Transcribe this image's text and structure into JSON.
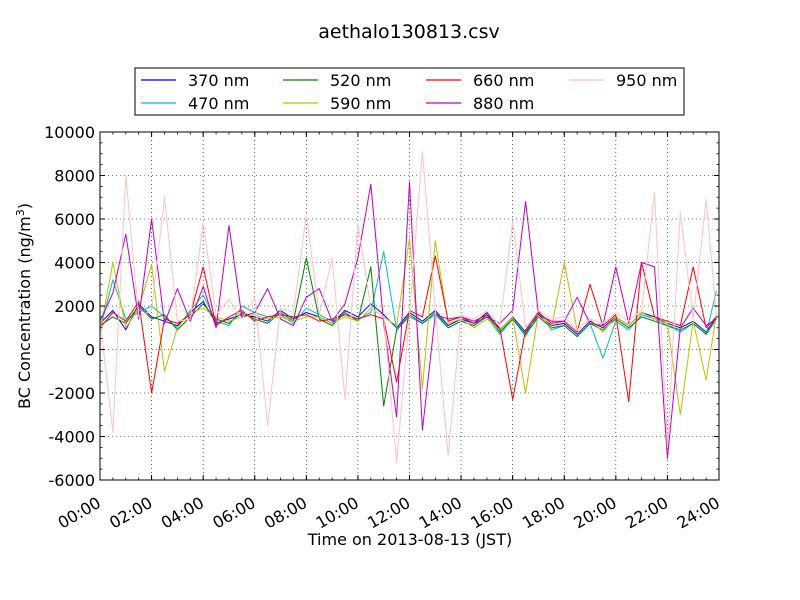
{
  "chart_data": {
    "type": "line",
    "title": "aethalo130813.csv",
    "xlabel": "Time on 2013-08-13 (JST)",
    "ylabel": "BC Concentration (ng/m",
    "ylabel_sup": "3",
    "ylabel_end": ")",
    "xlim": [
      "00:00",
      "24:00"
    ],
    "ylim": [
      -6000,
      10000
    ],
    "x_ticks": [
      "00:00",
      "02:00",
      "04:00",
      "06:00",
      "08:00",
      "10:00",
      "12:00",
      "14:00",
      "16:00",
      "18:00",
      "20:00",
      "22:00",
      "24:00"
    ],
    "y_ticks": [
      "-6000",
      "-4000",
      "-2000",
      "0",
      "2000",
      "4000",
      "6000",
      "8000",
      "10000"
    ],
    "grid": true,
    "legend_position": "top-center",
    "x_hours": [
      0.0,
      0.5,
      1.0,
      1.5,
      2.0,
      2.5,
      3.0,
      3.5,
      4.0,
      4.5,
      5.0,
      5.5,
      6.0,
      6.5,
      7.0,
      7.5,
      8.0,
      8.5,
      9.0,
      9.5,
      10.0,
      10.5,
      11.0,
      11.5,
      12.0,
      12.5,
      13.0,
      13.5,
      14.0,
      14.5,
      15.0,
      15.5,
      16.0,
      16.5,
      17.0,
      17.5,
      18.0,
      18.5,
      19.0,
      19.5,
      20.0,
      20.5,
      21.0,
      21.5,
      22.0,
      22.5,
      23.0,
      23.5,
      23.9
    ],
    "series": [
      {
        "name": "370 nm",
        "color": "#0000ff",
        "values": [
          1200,
          1800,
          900,
          2100,
          1500,
          1300,
          1100,
          1700,
          2200,
          1200,
          1400,
          1600,
          1500,
          1300,
          1800,
          1400,
          1700,
          1500,
          1200,
          1800,
          1500,
          2100,
          1600,
          1000,
          1700,
          1300,
          1800,
          1100,
          1400,
          1200,
          1700,
          900,
          1500,
          800,
          1600,
          1100,
          1200,
          700,
          1300,
          1000,
          1500,
          1100,
          1700,
          1500,
          1200,
          1000,
          1300,
          800,
          1500
        ]
      },
      {
        "name": "470 nm",
        "color": "#00bfbf",
        "values": [
          900,
          3200,
          1400,
          1700,
          2000,
          1500,
          1000,
          1800,
          2500,
          1300,
          1100,
          2000,
          1700,
          1500,
          1600,
          1200,
          1900,
          1600,
          1300,
          1600,
          1400,
          1700,
          4500,
          900,
          1500,
          1200,
          1600,
          1000,
          1300,
          1100,
          1500,
          700,
          1400,
          600,
          1800,
          900,
          1100,
          600,
          1200,
          -400,
          1300,
          900,
          1600,
          1400,
          1100,
          800,
          1200,
          700,
          2700
        ]
      },
      {
        "name": "520 nm",
        "color": "#008000",
        "values": [
          1100,
          1500,
          1200,
          2000,
          1400,
          1600,
          900,
          1500,
          2100,
          1400,
          1200,
          1700,
          1400,
          1200,
          1700,
          1300,
          4200,
          1400,
          1100,
          1700,
          1300,
          3800,
          -2600,
          900,
          1600,
          1200,
          1700,
          1000,
          1300,
          1100,
          1600,
          800,
          1400,
          700,
          1500,
          1000,
          1100,
          600,
          1200,
          900,
          1400,
          1000,
          1500,
          1300,
          1100,
          900,
          1200,
          700,
          1400
        ]
      },
      {
        "name": "590 nm",
        "color": "#bfbf00",
        "values": [
          800,
          4000,
          1000,
          1900,
          3900,
          -1000,
          1000,
          1700,
          1900,
          1500,
          1300,
          1500,
          1600,
          1400,
          1500,
          1300,
          1500,
          1500,
          1200,
          1500,
          1300,
          1900,
          1500,
          1100,
          5100,
          -1800,
          5000,
          1200,
          1400,
          1000,
          1400,
          900,
          1500,
          -2000,
          1700,
          1000,
          4000,
          900,
          1400,
          800,
          1500,
          1100,
          1700,
          1400,
          1200,
          -3000,
          1300,
          -1400,
          1600
        ]
      },
      {
        "name": "660 nm",
        "color": "#ff0000",
        "values": [
          1000,
          1700,
          1300,
          2200,
          -2000,
          1400,
          1200,
          1600,
          3800,
          1100,
          1500,
          1800,
          1300,
          1500,
          1600,
          1500,
          1600,
          1300,
          1400,
          1600,
          1400,
          1600,
          1400,
          -1500,
          1800,
          1500,
          4300,
          1300,
          1500,
          1300,
          1600,
          1000,
          -2300,
          900,
          1700,
          1200,
          1300,
          800,
          3000,
          1100,
          1600,
          -2400,
          4000,
          1500,
          1300,
          1100,
          3800,
          1000,
          1500
        ]
      },
      {
        "name": "880 nm",
        "color": "#bf00bf",
        "values": [
          1300,
          2600,
          5300,
          1400,
          6000,
          1200,
          2800,
          1300,
          2900,
          1000,
          5700,
          1500,
          1700,
          2800,
          1400,
          1100,
          2400,
          2800,
          1300,
          2100,
          4200,
          7600,
          1200,
          -3100,
          7700,
          -3700,
          1600,
          1400,
          1500,
          1200,
          1500,
          1200,
          1800,
          6800,
          1600,
          1300,
          1300,
          2400,
          1200,
          1100,
          3800,
          1200,
          4000,
          3800,
          -5000,
          1000,
          1900,
          1100,
          1400
        ]
      },
      {
        "name": "950 nm",
        "color": "#ffc0cb",
        "values": [
          1400,
          -3800,
          8000,
          1500,
          1800,
          7000,
          1300,
          1400,
          5800,
          1600,
          2300,
          1400,
          2400,
          -3500,
          1900,
          1700,
          6200,
          1600,
          4200,
          -2300,
          5800,
          1900,
          1500,
          -5200,
          1600,
          9100,
          1800,
          -4900,
          1600,
          1400,
          1800,
          1100,
          5900,
          1000,
          1800,
          1400,
          1500,
          900,
          1400,
          1200,
          1700,
          1300,
          1800,
          7200,
          -4500,
          6300,
          1400,
          6900,
          1600
        ]
      }
    ]
  }
}
